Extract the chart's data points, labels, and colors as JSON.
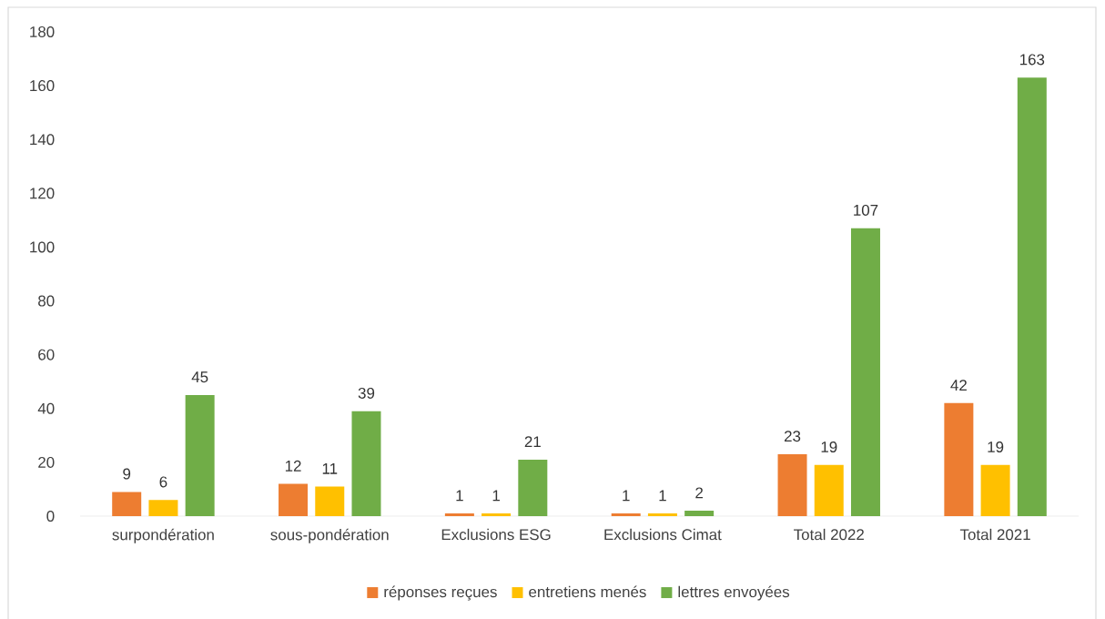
{
  "chart_data": {
    "type": "bar",
    "categories": [
      "surpondération",
      "sous-pondération",
      "Exclusions ESG",
      "Exclusions Cimat",
      "Total 2022",
      "Total 2021"
    ],
    "series": [
      {
        "name": "réponses reçues",
        "color": "#ed7d31",
        "values": [
          9,
          12,
          1,
          1,
          23,
          42
        ]
      },
      {
        "name": "entretiens menés",
        "color": "#ffc000",
        "values": [
          6,
          11,
          1,
          1,
          19,
          19
        ]
      },
      {
        "name": "lettres envoyées",
        "color": "#70ad47",
        "values": [
          45,
          39,
          21,
          2,
          107,
          163
        ]
      }
    ],
    "ylim": [
      0,
      180
    ],
    "yticks": [
      0,
      20,
      40,
      60,
      80,
      100,
      120,
      140,
      160,
      180
    ],
    "legend": "bottom",
    "data_labels": true
  }
}
